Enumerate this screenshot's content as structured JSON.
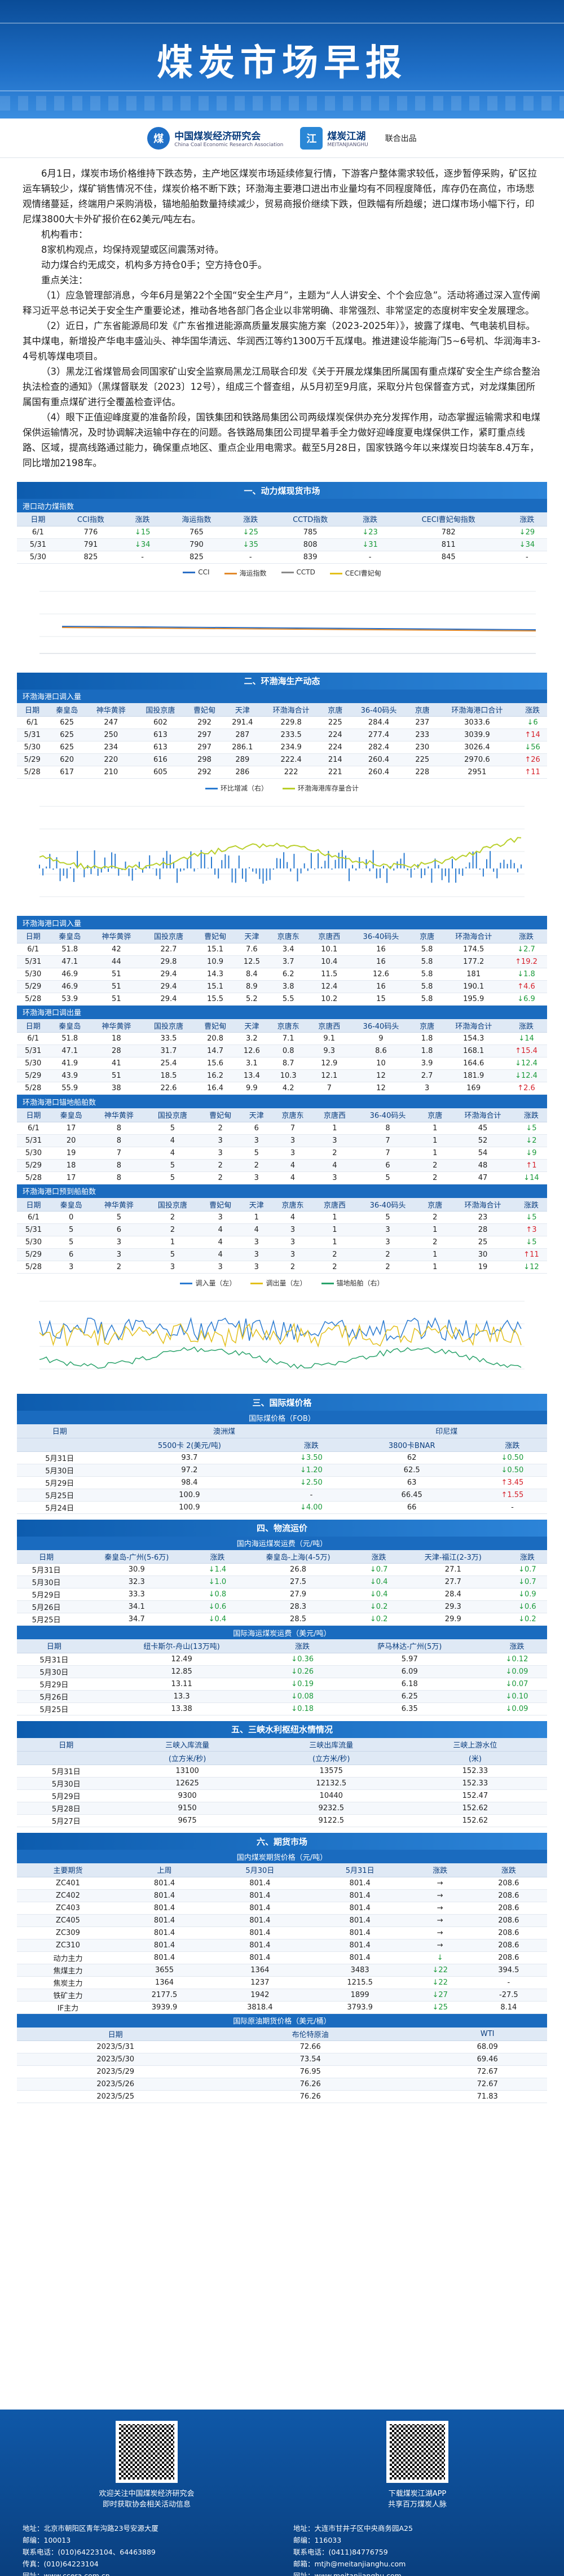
{
  "header": {
    "title": "煤炭市场早报",
    "org1_name": "中国煤炭经济研究会",
    "org1_en": "China Coal Economic Research Association",
    "org2_name": "煤炭江湖",
    "org2_en": "MEITANJIANGHU",
    "joint": "联合出品"
  },
  "summary": {
    "p1": "6月1日，煤炭市场价格维持下跌态势，主产地区煤炭市场延续修复行情，下游客户整体需求较低，逐步暂停采购，矿区拉运车辆较少，煤矿销售情况不佳，煤炭价格不断下跌；环渤海主要港口进出市业量均有不同程度降低，库存仍在高位，市场悲观情绪蔓延，终端用户采购消极，锚地船舶数量持续减少，贸易商报价继续下跌，但跌幅有所趋缓；进口煤市场小幅下行，印尼煤3800大卡外矿报价在62美元/吨左右。",
    "p2": "机构看市：",
    "p3": "8家机构观点，均保持观望或区间震荡对待。",
    "p4": "动力煤合约无成交，机构多方持仓0手；空方持仓0手。",
    "p5": "重点关注：",
    "p6": "（1）应急管理部消息，今年6月是第22个全国“安全生产月”，主题为“人人讲安全、个个会应急”。活动将通过深入宣传阐释习近平总书记关于安全生产重要论述，推动各地各部门各企业以非常明确、非常强烈、非常坚定的态度树牢安全发展理念。",
    "p7": "（2）近日，广东省能源局印发《广东省推进能源高质量发展实施方案（2023-2025年）》，披露了煤电、气电装机目标。其中煤电，新增投产华电丰盛汕头、神华国华清远、华润西江等约1300万千瓦煤电。推进建设华能海门5~6号机、华润海丰3-4号机等煤电项目。",
    "p8": "（3）黑龙江省煤管局会同国家矿山安全监察局黑龙江局联合印发《关于开展龙煤集团所属国有重点煤矿安全生产综合整治执法检查的通知》（黑煤督联发〔2023〕12号），组成三个督查组，从5月初至9月底，采取分片包保督查方式，对龙煤集团所属国有重点煤矿进行全覆盖检查评估。",
    "p9": "（4）眼下正值迎峰度夏的准备阶段，国铁集团和铁路局集团公司两级煤炭保供办充分发挥作用，动态掌握运输需求和电煤保供运输情况，及时协调解决运输中存在的问题。各铁路局集团公司提早着手全力做好迎峰度夏电煤保供工作，紧盯重点线路、区域，提高线路通过能力，确保重点地区、重点企业用电需求。截至5月28日，国家铁路今年以来煤炭日均装车8.4万车，同比增加2198车。"
  },
  "s1": {
    "title": "一、动力煤现货市场",
    "sub1": "港口动力煤指数",
    "headers": [
      "日期",
      "CCI指数",
      "涨跌",
      "海运指数",
      "涨跌",
      "CCTD指数",
      "涨跌",
      "CECI曹妃甸指数",
      "涨跌"
    ],
    "rows": [
      [
        "6/1",
        "776",
        "↓15",
        "765",
        "↓25",
        "785",
        "↓23",
        "782",
        "↓29"
      ],
      [
        "5/31",
        "791",
        "↓34",
        "790",
        "↓35",
        "808",
        "↓31",
        "811",
        "↓34"
      ],
      [
        "5/30",
        "825",
        "-",
        "825",
        "-",
        "839",
        "-",
        "845",
        "-"
      ]
    ],
    "legend": [
      "CCI",
      "海运指数",
      "CCTD",
      "CECI曹妃甸"
    ]
  },
  "s2": {
    "title": "二、环渤海生产动态",
    "sub1": "环渤海港口调入量",
    "headers": [
      "日期",
      "秦皇岛",
      "神华黄骅",
      "国投京唐",
      "曹妃甸",
      "天津",
      "环渤海合计",
      "京唐",
      "36-40码头",
      "京唐",
      "环渤海港口合计",
      "涨跌"
    ],
    "rows": [
      [
        "6/1",
        "625",
        "247",
        "602",
        "292",
        "291.4",
        "229.8",
        "225",
        "284.4",
        "237",
        "3033.6",
        "↓6"
      ],
      [
        "5/31",
        "625",
        "250",
        "613",
        "297",
        "287",
        "233.5",
        "224",
        "277.4",
        "233",
        "3039.9",
        "↑14"
      ],
      [
        "5/30",
        "625",
        "234",
        "613",
        "297",
        "286.1",
        "234.9",
        "224",
        "282.4",
        "230",
        "3026.4",
        "↓56"
      ],
      [
        "5/29",
        "620",
        "220",
        "616",
        "298",
        "289",
        "222.4",
        "214",
        "260.4",
        "225",
        "2970.6",
        "↑26"
      ],
      [
        "5/28",
        "617",
        "210",
        "605",
        "292",
        "286",
        "222",
        "221",
        "260.4",
        "228",
        "2951",
        "↑11"
      ]
    ],
    "legend1": [
      "环比增减（右）",
      "环渤海港库存量合计"
    ],
    "sub2": "环渤海港口调入量",
    "headers2": [
      "日期",
      "秦皇岛",
      "神华黄骅",
      "国投京唐",
      "曹妃甸",
      "天津",
      "京唐东",
      "京唐西",
      "36-40码头",
      "京唐",
      "环渤海合计",
      "涨跌"
    ],
    "rows2": [
      [
        "6/1",
        "51.8",
        "42",
        "22.7",
        "15.1",
        "7.6",
        "3.4",
        "10.1",
        "16",
        "5.8",
        "174.5",
        "↓2.7"
      ],
      [
        "5/31",
        "47.1",
        "44",
        "29.8",
        "10.9",
        "12.5",
        "3.7",
        "10.4",
        "16",
        "5.8",
        "177.2",
        "↑19.2"
      ],
      [
        "5/30",
        "46.9",
        "51",
        "29.4",
        "14.3",
        "8.4",
        "6.2",
        "11.5",
        "12.6",
        "5.8",
        "181",
        "↓1.8"
      ],
      [
        "5/29",
        "46.9",
        "51",
        "29.4",
        "15.1",
        "8.9",
        "3.8",
        "12.4",
        "16",
        "5.8",
        "190.1",
        "↑4.6"
      ],
      [
        "5/28",
        "53.9",
        "51",
        "29.4",
        "15.5",
        "5.2",
        "5.5",
        "10.2",
        "15",
        "5.8",
        "195.9",
        "↓6.9"
      ]
    ],
    "sub3": "环渤海港口调出量",
    "rows3": [
      [
        "6/1",
        "51.8",
        "18",
        "33.5",
        "20.8",
        "3.2",
        "7.1",
        "9.1",
        "9",
        "1.8",
        "154.3",
        "↓14"
      ],
      [
        "5/31",
        "47.1",
        "28",
        "31.7",
        "14.7",
        "12.6",
        "0.8",
        "9.3",
        "8.6",
        "1.8",
        "168.1",
        "↑15.4"
      ],
      [
        "5/30",
        "41.9",
        "41",
        "25.4",
        "15.6",
        "3.1",
        "8.7",
        "12.9",
        "10",
        "3.9",
        "164.6",
        "↓12.4"
      ],
      [
        "5/29",
        "43.9",
        "51",
        "18.5",
        "16.2",
        "13.4",
        "10.3",
        "12.1",
        "12",
        "2.7",
        "181.9",
        "↓12.4"
      ],
      [
        "5/28",
        "55.9",
        "38",
        "22.6",
        "16.4",
        "9.9",
        "4.2",
        "7",
        "12",
        "3",
        "169",
        "↑2.6"
      ]
    ],
    "sub4": "环渤海港口锚地船舶数",
    "headers4": [
      "日期",
      "秦皇岛",
      "神华黄骅",
      "国投京唐",
      "曹妃甸",
      "天津",
      "京唐东",
      "京唐西",
      "36-40码头",
      "京唐",
      "环渤海合计",
      "涨跌"
    ],
    "rows4": [
      [
        "6/1",
        "17",
        "8",
        "5",
        "2",
        "6",
        "7",
        "1",
        "8",
        "1",
        "45",
        "↓5"
      ],
      [
        "5/31",
        "20",
        "8",
        "4",
        "3",
        "3",
        "3",
        "3",
        "7",
        "1",
        "52",
        "↓2"
      ],
      [
        "5/30",
        "19",
        "7",
        "4",
        "3",
        "5",
        "3",
        "2",
        "7",
        "1",
        "54",
        "↓9"
      ],
      [
        "5/29",
        "18",
        "8",
        "5",
        "2",
        "2",
        "4",
        "4",
        "6",
        "2",
        "48",
        "↑1"
      ],
      [
        "5/28",
        "17",
        "8",
        "5",
        "2",
        "3",
        "4",
        "3",
        "5",
        "2",
        "47",
        "↓14"
      ]
    ],
    "sub5": "环渤海港口预到船舶数",
    "rows5": [
      [
        "6/1",
        "0",
        "5",
        "2",
        "3",
        "1",
        "4",
        "1",
        "5",
        "2",
        "23",
        "↓5"
      ],
      [
        "5/31",
        "5",
        "6",
        "2",
        "4",
        "4",
        "3",
        "1",
        "3",
        "1",
        "28",
        "↑3"
      ],
      [
        "5/30",
        "5",
        "3",
        "1",
        "4",
        "3",
        "3",
        "1",
        "3",
        "2",
        "25",
        "↓5"
      ],
      [
        "5/29",
        "6",
        "3",
        "5",
        "4",
        "3",
        "3",
        "2",
        "2",
        "1",
        "30",
        "↑11"
      ],
      [
        "5/28",
        "3",
        "2",
        "3",
        "3",
        "3",
        "2",
        "2",
        "2",
        "1",
        "19",
        "↓12"
      ]
    ],
    "legend2": [
      "调入量（左）",
      "调出量（左）",
      "锚地船舶（右）"
    ]
  },
  "s3": {
    "title": "三、国际煤价格",
    "sub1": "国际煤价格（FOB）",
    "headers": [
      "日期",
      "澳洲煤",
      "",
      "印尼煤",
      "",
      "南非煤"
    ],
    "subheaders": [
      "",
      "5500卡 2(美元/吨)",
      "涨跌",
      "3800卡BNAR",
      "涨跌",
      "涨跌"
    ],
    "rows": [
      [
        "5月31日",
        "93.7",
        "↓3.50",
        "62",
        "↓0.50"
      ],
      [
        "5月30日",
        "97.2",
        "↓1.20",
        "62.5",
        "↓0.50"
      ],
      [
        "5月29日",
        "98.4",
        "↓2.50",
        "63",
        "↑3.45"
      ],
      [
        "5月25日",
        "100.9",
        "-",
        "66.45",
        "↑1.55"
      ],
      [
        "5月24日",
        "100.9",
        "↓4.00",
        "66",
        "-"
      ]
    ]
  },
  "s4": {
    "title": "四、物流运价",
    "sub1": "国内海运煤炭运费（元/吨）",
    "headers": [
      "日期",
      "秦皇岛-广州(5-6万)",
      "涨跌",
      "秦皇岛-上海(4-5万)",
      "涨跌",
      "天津-福江(2-3万)",
      "涨跌"
    ],
    "rows": [
      [
        "5月31日",
        "30.9",
        "↓1.4",
        "26.8",
        "↓0.7",
        "27.1",
        "↓0.7"
      ],
      [
        "5月30日",
        "32.3",
        "↓1.0",
        "27.5",
        "↓0.4",
        "27.7",
        "↓0.7"
      ],
      [
        "5月29日",
        "33.3",
        "↓0.8",
        "27.9",
        "↓0.4",
        "28.4",
        "↓0.9"
      ],
      [
        "5月26日",
        "34.1",
        "↓0.6",
        "28.3",
        "↓0.2",
        "29.3",
        "↓0.6"
      ],
      [
        "5月25日",
        "34.7",
        "↓0.4",
        "28.5",
        "↓0.2",
        "29.9",
        "↓0.2"
      ]
    ],
    "sub2": "国际海运煤炭运费（美元/吨）",
    "headers2": [
      "日期",
      "纽卡斯尔-舟山(13万吨)",
      "涨跌",
      "萨马林达-广州(5万)",
      "涨跌"
    ],
    "rows2": [
      [
        "5月31日",
        "12.49",
        "↓0.36",
        "5.97",
        "↓0.12"
      ],
      [
        "5月30日",
        "12.85",
        "↓0.26",
        "6.09",
        "↓0.09"
      ],
      [
        "5月29日",
        "13.11",
        "↓0.19",
        "6.18",
        "↓0.07"
      ],
      [
        "5月26日",
        "13.3",
        "↓0.08",
        "6.25",
        "↓0.10"
      ],
      [
        "5月25日",
        "13.38",
        "↓0.18",
        "6.35",
        "↓0.09"
      ]
    ]
  },
  "s5": {
    "title": "五、三峡水利枢纽水情情况",
    "headers": [
      "日期",
      "三峡入库流量",
      "三峡出库流量",
      "三峡上游水位"
    ],
    "subheaders": [
      "",
      "(立方米/秒)",
      "(立方米/秒)",
      "(米)"
    ],
    "rows": [
      [
        "5月31日",
        "13100",
        "13575",
        "152.33"
      ],
      [
        "5月30日",
        "12625",
        "12132.5",
        "152.33"
      ],
      [
        "5月29日",
        "9300",
        "10440",
        "152.47"
      ],
      [
        "5月28日",
        "9150",
        "9232.5",
        "152.62"
      ],
      [
        "5月27日",
        "9675",
        "9122.5",
        "152.62"
      ]
    ]
  },
  "s6": {
    "title": "六、期货市场",
    "sub1": "国内煤炭期货价格（元/吨）",
    "headers": [
      "主要期货",
      "上周",
      "5月30日",
      "5月31日",
      "涨跌",
      "涨跌"
    ],
    "rows": [
      [
        "ZC401",
        "801.4",
        "801.4",
        "801.4",
        "→",
        "208.6"
      ],
      [
        "ZC402",
        "801.4",
        "801.4",
        "801.4",
        "→",
        "208.6"
      ],
      [
        "ZC403",
        "801.4",
        "801.4",
        "801.4",
        "→",
        "208.6"
      ],
      [
        "ZC405",
        "801.4",
        "801.4",
        "801.4",
        "→",
        "208.6"
      ],
      [
        "ZC309",
        "801.4",
        "801.4",
        "801.4",
        "→",
        "208.6"
      ],
      [
        "ZC310",
        "801.4",
        "801.4",
        "801.4",
        "→",
        "208.6"
      ],
      [
        "动力主力",
        "801.4",
        "801.4",
        "801.4",
        "↓",
        "208.6"
      ],
      [
        "焦煤主力",
        "3655",
        "1364",
        "3483",
        "↓22",
        "394.5"
      ],
      [
        "焦炭主力",
        "1364",
        "1237",
        "1215.5",
        "↓22",
        "-"
      ],
      [
        "铁矿主力",
        "2177.5",
        "1942",
        "1899",
        "↓27",
        "-27.5"
      ],
      [
        "IF主力",
        "3939.9",
        "3818.4",
        "3793.9",
        "↓25",
        "8.14"
      ]
    ],
    "sub2": "国际原油期货价格（美元/桶）",
    "headers2": [
      "日期",
      "布伦特原油",
      "",
      "WTI"
    ],
    "rows2": [
      [
        "2023/5/31",
        "72.66",
        "",
        "68.09"
      ],
      [
        "2023/5/30",
        "73.54",
        "",
        "69.46"
      ],
      [
        "2023/5/29",
        "76.95",
        "",
        "72.67"
      ],
      [
        "2023/5/26",
        "76.26",
        "",
        "72.67"
      ],
      [
        "2023/5/25",
        "76.26",
        "",
        "71.83"
      ]
    ]
  },
  "footer": {
    "left_caption1": "欢迎关注中国煤炭经济研究会",
    "left_caption2": "即时获取协会相关活动信息",
    "right_caption1": "下载煤炭江湖APP",
    "right_caption2": "共享百万煤炭人脉",
    "left_info": [
      "地址：北京市朝阳区青年沟路23号安源大厦",
      "邮编：100013",
      "联系电话：(010)64223104、64463889",
      "传真：(010)64223104",
      "网址：www.ccera.com.cn"
    ],
    "right_info": [
      "地址：大连市甘井子区中央商务园A25",
      "邮编：116033",
      "联系电话：(0411)84776759",
      "邮箱：mtjh@meitanjianghu.com",
      "网址：www.meitanjianghu.com"
    ]
  },
  "colors": {
    "primary": "#0d5cae",
    "up": "#d6202a",
    "down": "#1a9a3a"
  }
}
